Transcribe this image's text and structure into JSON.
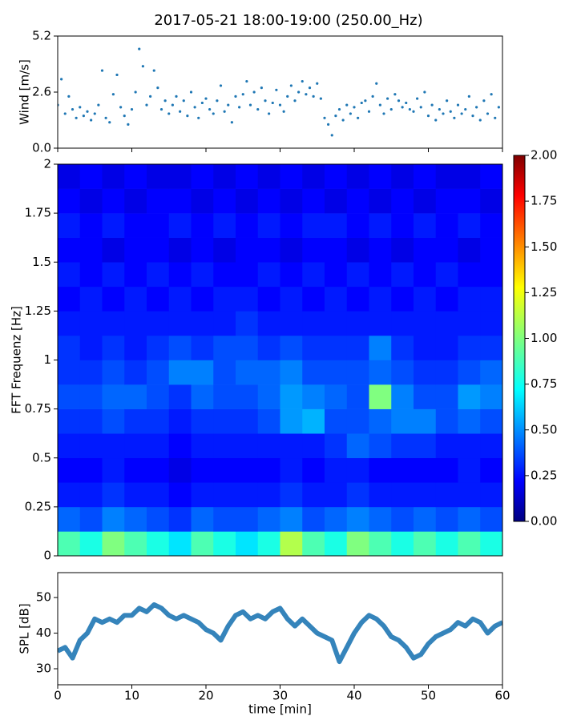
{
  "title": "2017-05-21 18:00-19:00 (250.00_Hz)",
  "chart_data": [
    {
      "type": "scatter",
      "ylabel": "Wind [m/s]",
      "color": "#1f77b4",
      "xlim": [
        0,
        60
      ],
      "xticks": [
        0,
        10,
        20,
        30,
        40,
        50,
        60
      ],
      "ylim": [
        0,
        5.2
      ],
      "yticks": [
        {
          "value": 0,
          "label": "0.0"
        },
        {
          "value": 2.6,
          "label": "2.6"
        },
        {
          "value": 5.2,
          "label": "5.2"
        }
      ],
      "x": [
        0,
        0.5,
        1,
        1.5,
        2,
        2.5,
        3,
        3.5,
        4,
        4.5,
        5,
        5.5,
        6,
        6.5,
        7,
        7.5,
        8,
        8.5,
        9,
        9.5,
        10,
        10.5,
        11,
        11.5,
        12,
        12.5,
        13,
        13.5,
        14,
        14.5,
        15,
        15.5,
        16,
        16.5,
        17,
        17.5,
        18,
        18.5,
        19,
        19.5,
        20,
        20.5,
        21,
        21.5,
        22,
        22.5,
        23,
        23.5,
        24,
        24.5,
        25,
        25.5,
        26,
        26.5,
        27,
        27.5,
        28,
        28.5,
        29,
        29.5,
        30,
        30.5,
        31,
        31.5,
        32,
        32.5,
        33,
        33.5,
        34,
        34.5,
        35,
        35.5,
        36,
        36.5,
        37,
        37.5,
        38,
        38.5,
        39,
        39.5,
        40,
        40.5,
        41,
        41.5,
        42,
        42.5,
        43,
        43.5,
        44,
        44.5,
        45,
        45.5,
        46,
        46.5,
        47,
        47.5,
        48,
        48.5,
        49,
        49.5,
        50,
        50.5,
        51,
        51.5,
        52,
        52.5,
        53,
        53.5,
        54,
        54.5,
        55,
        55.5,
        56,
        56.5,
        57,
        57.5,
        58,
        58.5,
        59,
        59.5
      ],
      "values": [
        2.0,
        3.2,
        1.6,
        2.4,
        1.8,
        1.4,
        1.9,
        1.5,
        1.7,
        1.3,
        1.6,
        2.0,
        3.6,
        1.4,
        1.2,
        2.5,
        3.4,
        1.9,
        1.5,
        1.1,
        1.8,
        2.6,
        4.6,
        3.8,
        2.0,
        2.4,
        3.6,
        2.8,
        1.8,
        2.2,
        1.6,
        2.0,
        2.4,
        1.7,
        2.2,
        1.5,
        2.6,
        1.9,
        1.4,
        2.1,
        2.3,
        1.8,
        1.6,
        2.2,
        2.9,
        1.7,
        2.0,
        1.2,
        2.4,
        1.9,
        2.5,
        3.1,
        2.0,
        2.6,
        1.8,
        2.8,
        2.2,
        1.6,
        2.1,
        2.7,
        2.0,
        1.7,
        2.4,
        2.9,
        2.2,
        2.6,
        3.1,
        2.5,
        2.8,
        2.4,
        3.0,
        2.3,
        1.4,
        1.1,
        0.6,
        1.5,
        1.8,
        1.3,
        2.0,
        1.6,
        1.9,
        1.4,
        2.1,
        2.2,
        1.7,
        2.4,
        3.0,
        2.0,
        1.6,
        2.3,
        1.8,
        2.5,
        2.2,
        1.9,
        2.1,
        1.8,
        1.7,
        2.3,
        1.9,
        2.6,
        1.5,
        2.0,
        1.3,
        1.8,
        1.6,
        2.2,
        1.7,
        1.4,
        2.0,
        1.6,
        1.8,
        2.4,
        1.5,
        1.9,
        1.3,
        2.2,
        1.6,
        2.5,
        1.4,
        1.9
      ]
    },
    {
      "type": "heatmap",
      "ylabel": "FFT Frequenz [Hz]",
      "colormap": "jet",
      "xlim": [
        0,
        60
      ],
      "ylim": [
        0,
        2
      ],
      "yticks": [
        0,
        0.25,
        0.5,
        0.75,
        1,
        1.25,
        1.5,
        1.75,
        2
      ],
      "clim": [
        0,
        2
      ],
      "colorbar_ticks": [
        {
          "value": 0,
          "label": "0.00"
        },
        {
          "value": 0.25,
          "label": "0.25"
        },
        {
          "value": 0.5,
          "label": "0.50"
        },
        {
          "value": 0.75,
          "label": "0.75"
        },
        {
          "value": 1,
          "label": "1.00"
        },
        {
          "value": 1.25,
          "label": "1.25"
        },
        {
          "value": 1.5,
          "label": "1.50"
        },
        {
          "value": 1.75,
          "label": "1.75"
        },
        {
          "value": 2,
          "label": "2.00"
        }
      ],
      "values": [
        [
          0.9,
          0.8,
          1.0,
          0.9,
          0.8,
          0.7,
          0.9,
          0.8,
          0.7,
          0.8,
          1.1,
          0.9,
          0.8,
          1.0,
          0.9,
          0.8,
          0.9,
          0.8,
          0.9,
          0.8
        ],
        [
          0.45,
          0.4,
          0.5,
          0.45,
          0.4,
          0.35,
          0.45,
          0.4,
          0.4,
          0.45,
          0.5,
          0.4,
          0.45,
          0.5,
          0.45,
          0.4,
          0.45,
          0.4,
          0.45,
          0.4
        ],
        [
          0.3,
          0.3,
          0.35,
          0.3,
          0.3,
          0.25,
          0.3,
          0.3,
          0.3,
          0.3,
          0.35,
          0.3,
          0.3,
          0.35,
          0.3,
          0.3,
          0.3,
          0.3,
          0.3,
          0.3
        ],
        [
          0.25,
          0.25,
          0.3,
          0.25,
          0.25,
          0.2,
          0.25,
          0.25,
          0.25,
          0.25,
          0.3,
          0.25,
          0.3,
          0.3,
          0.25,
          0.25,
          0.25,
          0.25,
          0.3,
          0.25
        ],
        [
          0.3,
          0.3,
          0.3,
          0.3,
          0.3,
          0.25,
          0.3,
          0.3,
          0.3,
          0.3,
          0.3,
          0.3,
          0.35,
          0.45,
          0.4,
          0.35,
          0.35,
          0.3,
          0.3,
          0.3
        ],
        [
          0.35,
          0.35,
          0.4,
          0.35,
          0.35,
          0.3,
          0.35,
          0.35,
          0.35,
          0.4,
          0.55,
          0.6,
          0.4,
          0.4,
          0.45,
          0.5,
          0.5,
          0.4,
          0.45,
          0.4
        ],
        [
          0.4,
          0.4,
          0.45,
          0.45,
          0.4,
          0.35,
          0.45,
          0.4,
          0.4,
          0.45,
          0.55,
          0.5,
          0.45,
          0.4,
          1.0,
          0.5,
          0.4,
          0.4,
          0.55,
          0.5
        ],
        [
          0.35,
          0.35,
          0.4,
          0.35,
          0.4,
          0.5,
          0.5,
          0.4,
          0.45,
          0.45,
          0.5,
          0.4,
          0.4,
          0.4,
          0.45,
          0.4,
          0.35,
          0.35,
          0.4,
          0.45
        ],
        [
          0.35,
          0.3,
          0.35,
          0.3,
          0.35,
          0.4,
          0.35,
          0.4,
          0.4,
          0.35,
          0.4,
          0.35,
          0.35,
          0.35,
          0.5,
          0.35,
          0.3,
          0.3,
          0.35,
          0.35
        ],
        [
          0.3,
          0.3,
          0.3,
          0.3,
          0.3,
          0.3,
          0.3,
          0.3,
          0.35,
          0.3,
          0.3,
          0.3,
          0.3,
          0.3,
          0.3,
          0.3,
          0.3,
          0.3,
          0.3,
          0.3
        ],
        [
          0.25,
          0.3,
          0.25,
          0.3,
          0.25,
          0.3,
          0.25,
          0.3,
          0.3,
          0.25,
          0.3,
          0.25,
          0.3,
          0.25,
          0.3,
          0.25,
          0.3,
          0.25,
          0.3,
          0.3
        ],
        [
          0.3,
          0.25,
          0.3,
          0.25,
          0.3,
          0.25,
          0.3,
          0.25,
          0.25,
          0.3,
          0.25,
          0.3,
          0.25,
          0.3,
          0.25,
          0.3,
          0.25,
          0.3,
          0.25,
          0.25
        ],
        [
          0.25,
          0.25,
          0.2,
          0.25,
          0.25,
          0.2,
          0.25,
          0.2,
          0.25,
          0.25,
          0.2,
          0.25,
          0.25,
          0.2,
          0.25,
          0.2,
          0.25,
          0.25,
          0.2,
          0.25
        ],
        [
          0.3,
          0.25,
          0.3,
          0.25,
          0.25,
          0.3,
          0.25,
          0.3,
          0.25,
          0.3,
          0.25,
          0.3,
          0.3,
          0.25,
          0.3,
          0.25,
          0.3,
          0.25,
          0.3,
          0.25
        ],
        [
          0.25,
          0.2,
          0.25,
          0.2,
          0.25,
          0.25,
          0.2,
          0.25,
          0.2,
          0.25,
          0.2,
          0.25,
          0.2,
          0.25,
          0.2,
          0.25,
          0.2,
          0.25,
          0.25,
          0.2
        ],
        [
          0.2,
          0.25,
          0.2,
          0.25,
          0.2,
          0.2,
          0.25,
          0.2,
          0.25,
          0.2,
          0.25,
          0.2,
          0.25,
          0.2,
          0.25,
          0.2,
          0.25,
          0.2,
          0.2,
          0.25
        ]
      ]
    },
    {
      "type": "line",
      "xlabel": "time [min]",
      "ylabel": "SPL [dB]",
      "color": "#1f77b4",
      "xlim": [
        0,
        60
      ],
      "xticks": [
        0,
        10,
        20,
        30,
        40,
        50,
        60
      ],
      "ylim": [
        25.5,
        57
      ],
      "yticks": [
        30,
        40,
        50
      ],
      "x": [
        0,
        1,
        2,
        3,
        4,
        5,
        6,
        7,
        8,
        9,
        10,
        11,
        12,
        13,
        14,
        15,
        16,
        17,
        18,
        19,
        20,
        21,
        22,
        23,
        24,
        25,
        26,
        27,
        28,
        29,
        30,
        31,
        32,
        33,
        34,
        35,
        36,
        37,
        38,
        39,
        40,
        41,
        42,
        43,
        44,
        45,
        46,
        47,
        48,
        49,
        50,
        51,
        52,
        53,
        54,
        55,
        56,
        57,
        58,
        59,
        60
      ],
      "values": [
        35,
        36,
        33,
        38,
        40,
        44,
        43,
        44,
        43,
        45,
        45,
        47,
        46,
        48,
        47,
        45,
        44,
        45,
        44,
        43,
        41,
        40,
        38,
        42,
        45,
        46,
        44,
        45,
        44,
        46,
        47,
        44,
        42,
        44,
        42,
        40,
        39,
        38,
        32,
        36,
        40,
        43,
        45,
        44,
        42,
        39,
        38,
        36,
        33,
        34,
        37,
        39,
        40,
        41,
        43,
        42,
        44,
        43,
        40,
        42,
        43
      ]
    }
  ]
}
